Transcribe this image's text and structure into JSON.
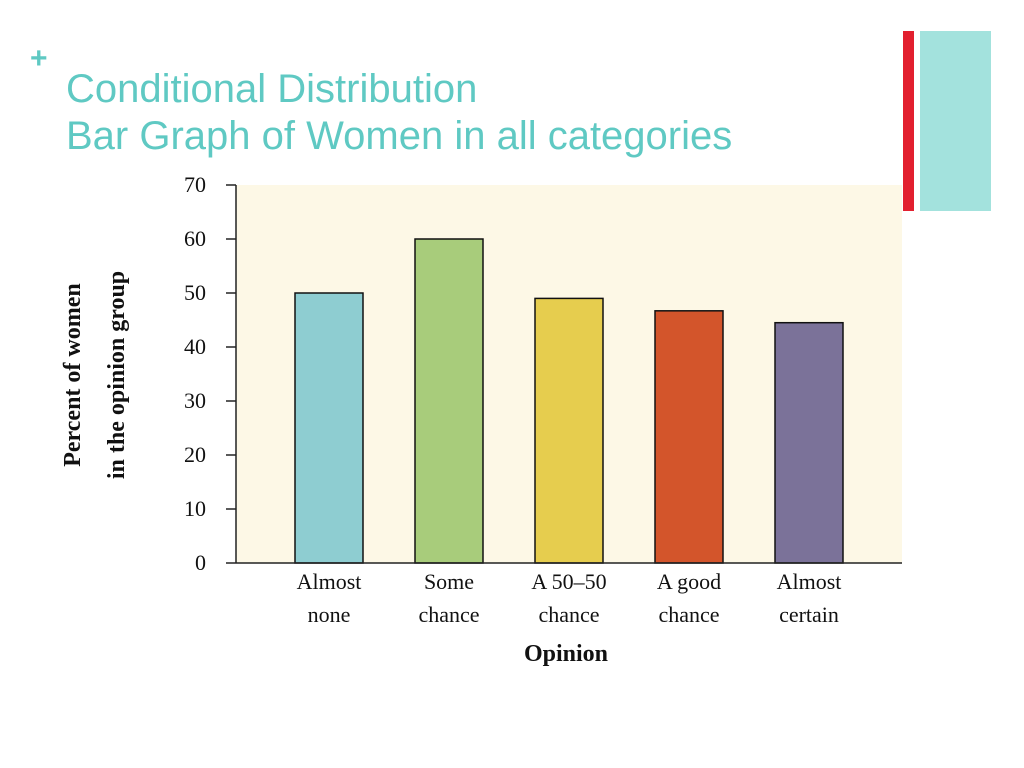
{
  "slide": {
    "bullet_symbol": "+",
    "title_line1": "Conditional Distribution",
    "title_line2": "Bar Graph of Women in all categories",
    "accent_colors": [
      "#e2202f",
      "#a3e2dd"
    ],
    "title_color": "#5fc9c3"
  },
  "chart_data": {
    "type": "bar",
    "title": "",
    "xlabel": "Opinion",
    "ylabel": [
      "Percent of women",
      "in the opinion group"
    ],
    "categories": [
      [
        "Almost",
        "none"
      ],
      [
        "Some",
        "chance"
      ],
      [
        "A 50–50",
        "chance"
      ],
      [
        "A good",
        "chance"
      ],
      [
        "Almost",
        "certain"
      ]
    ],
    "values": [
      50,
      60,
      49,
      46.7,
      44.5
    ],
    "bar_colors": [
      "#8ecdd1",
      "#a8cc7b",
      "#e6cd4e",
      "#d3552b",
      "#7b7299"
    ],
    "plot_background": "#fdf8e6",
    "ylim": [
      0,
      70
    ],
    "yticks": [
      0,
      10,
      20,
      30,
      40,
      50,
      60,
      70
    ],
    "grid": false,
    "legend": "none"
  }
}
